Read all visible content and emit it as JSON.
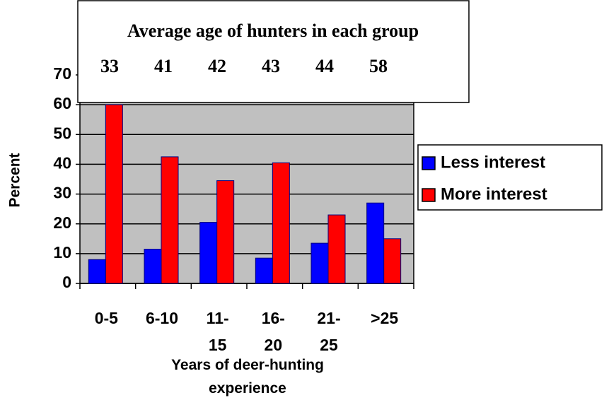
{
  "chart_data": {
    "type": "bar",
    "categories": [
      "0-5",
      "6-10",
      "11-\n15",
      "16-\n20",
      "21-\n25",
      ">25"
    ],
    "series": [
      {
        "name": "Less interest",
        "color": "#0000ff",
        "values": [
          8,
          11.5,
          20.5,
          8.5,
          13.5,
          27
        ]
      },
      {
        "name": "More interest",
        "color": "#ff0000",
        "values": [
          60,
          42.5,
          34.5,
          40.5,
          23,
          15
        ]
      }
    ],
    "ylabel": "Percent",
    "xlabel": "Years of deer-hunting\nexperience",
    "ylim": [
      0,
      70
    ],
    "yticks": [
      0,
      10,
      20,
      30,
      40,
      50,
      60,
      70
    ],
    "grid": true,
    "legend": "right",
    "annotation": {
      "title": "Average age of hunters in each group",
      "values": [
        33,
        41,
        42,
        43,
        44,
        58
      ]
    }
  }
}
